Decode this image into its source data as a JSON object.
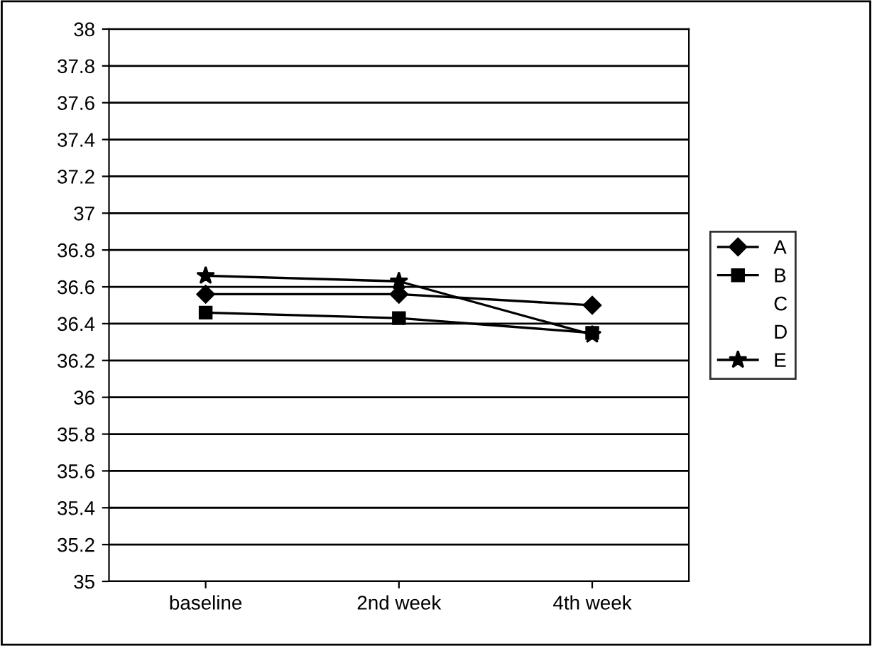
{
  "chart_data": {
    "type": "line",
    "categories": [
      "baseline",
      "2nd week",
      "4th week"
    ],
    "series": [
      {
        "name": "A",
        "color": "#000000",
        "marker": "diamond",
        "values": [
          36.56,
          36.56,
          36.5
        ]
      },
      {
        "name": "B",
        "color": "#000000",
        "marker": "square",
        "values": [
          36.46,
          36.43,
          36.35
        ]
      },
      {
        "name": "C",
        "marker": "none",
        "values": [
          null,
          null,
          null
        ]
      },
      {
        "name": "D",
        "marker": "none",
        "values": [
          null,
          null,
          null
        ]
      },
      {
        "name": "E",
        "color": "#000000",
        "marker": "star",
        "values": [
          36.66,
          36.63,
          36.34
        ]
      }
    ],
    "ylim": [
      35,
      38
    ],
    "yticks": [
      35,
      35.2,
      35.4,
      35.6,
      35.8,
      36,
      36.2,
      36.4,
      36.6,
      36.8,
      37,
      37.2,
      37.4,
      37.6,
      37.8,
      38
    ],
    "grid": "y",
    "legend": "right"
  }
}
